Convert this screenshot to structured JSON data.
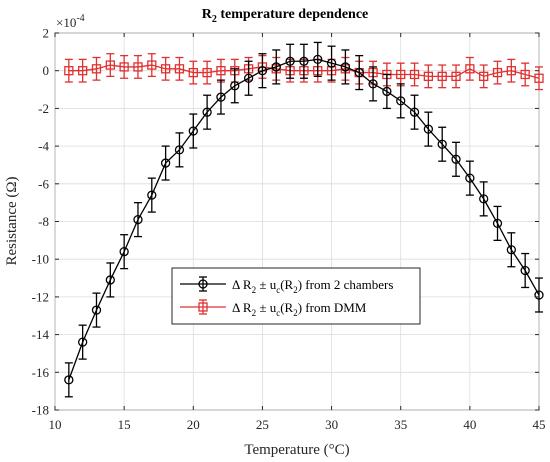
{
  "chart_data": {
    "type": "line",
    "title_main": "R",
    "title_sub": "2",
    "title_rest": " temperature dependence",
    "xlabel": "Temperature (°C)",
    "ylabel": "Resistance (Ω)",
    "y_exponent_base": "×10",
    "y_exponent_power": "-4",
    "xlim": [
      10,
      45
    ],
    "ylim": [
      -18,
      2
    ],
    "xticks": [
      10,
      15,
      20,
      25,
      30,
      35,
      40,
      45
    ],
    "yticks": [
      -18,
      -16,
      -14,
      -12,
      -10,
      -8,
      -6,
      -4,
      -2,
      0,
      2
    ],
    "grid": true,
    "legend_position": "center-left",
    "x": [
      11,
      12,
      13,
      14,
      15,
      16,
      17,
      18,
      19,
      20,
      21,
      22,
      23,
      24,
      25,
      26,
      27,
      28,
      29,
      30,
      31,
      32,
      33,
      34,
      35,
      36,
      37,
      38,
      39,
      40,
      41,
      42,
      43,
      44,
      45
    ],
    "series": [
      {
        "legend_parts": [
          "Δ R",
          "2",
          " ± u",
          "c",
          "(R",
          "2",
          ") from 2 chambers"
        ],
        "color": "#000000",
        "marker": "circle",
        "values": [
          -16.4,
          -14.4,
          -12.7,
          -11.1,
          -9.6,
          -7.9,
          -6.6,
          -4.9,
          -4.2,
          -3.2,
          -2.2,
          -1.4,
          -0.8,
          -0.4,
          0.0,
          0.2,
          0.5,
          0.5,
          0.6,
          0.4,
          0.2,
          -0.1,
          -0.7,
          -1.1,
          -1.6,
          -2.2,
          -3.1,
          -3.9,
          -4.7,
          -5.7,
          -6.8,
          -8.1,
          -9.5,
          -10.6,
          -11.9
        ],
        "errors": [
          0.9,
          0.9,
          0.9,
          0.9,
          0.9,
          0.9,
          0.9,
          0.9,
          0.9,
          0.9,
          0.9,
          0.9,
          0.9,
          0.9,
          0.9,
          0.9,
          0.9,
          0.9,
          0.9,
          0.9,
          0.9,
          0.9,
          0.9,
          0.9,
          0.9,
          0.9,
          0.9,
          0.9,
          0.9,
          0.9,
          0.9,
          0.9,
          0.9,
          0.9,
          0.9
        ]
      },
      {
        "legend_parts": [
          "Δ R",
          "2",
          " ± u",
          "c",
          "(R",
          "2",
          ") from DMM"
        ],
        "color": "#e03030",
        "marker": "square",
        "values": [
          0.0,
          0.0,
          0.1,
          0.3,
          0.2,
          0.2,
          0.3,
          0.1,
          0.1,
          -0.1,
          -0.1,
          0.0,
          0.0,
          0.1,
          0.2,
          0.1,
          0.0,
          0.0,
          0.0,
          0.0,
          0.1,
          -0.1,
          -0.1,
          -0.2,
          -0.2,
          -0.2,
          -0.3,
          -0.3,
          -0.3,
          0.1,
          -0.3,
          -0.1,
          0.0,
          -0.2,
          -0.4
        ],
        "errors": [
          0.6,
          0.6,
          0.6,
          0.6,
          0.6,
          0.6,
          0.6,
          0.6,
          0.6,
          0.6,
          0.6,
          0.6,
          0.6,
          0.6,
          0.6,
          0.6,
          0.6,
          0.6,
          0.6,
          0.6,
          0.6,
          0.6,
          0.6,
          0.6,
          0.6,
          0.6,
          0.6,
          0.6,
          0.6,
          0.6,
          0.6,
          0.6,
          0.6,
          0.6,
          0.6
        ]
      }
    ]
  }
}
